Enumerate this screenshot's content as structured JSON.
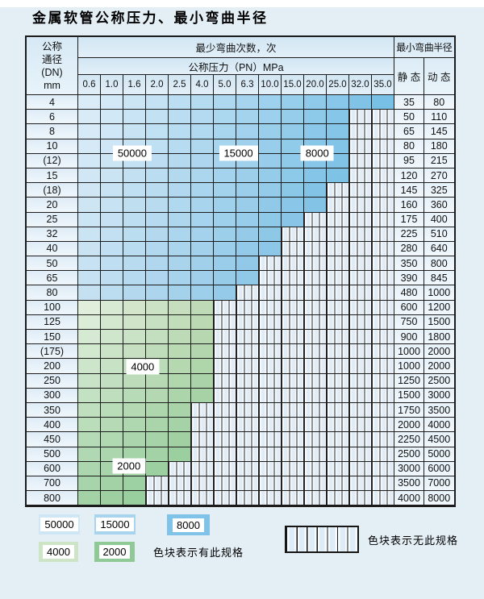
{
  "title": "金属软管公称压力、最小弯曲半径",
  "table": {
    "header": {
      "dn_lines": [
        "公称",
        "通径",
        "(DN)",
        "mm"
      ],
      "cycles_title": "最少弯曲次数，次",
      "pressure_title": "公称压力（PN）MPa",
      "radius_title": "最小弯曲半径",
      "static_label": "静 态",
      "dynamic_label": "动 态",
      "pressures": [
        "0.6",
        "1.0",
        "1.6",
        "2.0",
        "2.5",
        "4.0",
        "5.0",
        "6.3",
        "10.0",
        "15.0",
        "20.0",
        "25.0",
        "32.0",
        "35.0"
      ]
    },
    "rows": [
      {
        "dn": "4",
        "fill": "blue",
        "filled_through": "35.0",
        "static": "35",
        "dynamic": "80"
      },
      {
        "dn": "6",
        "fill": "blue",
        "filled_through": "25.0",
        "static": "50",
        "dynamic": "110"
      },
      {
        "dn": "8",
        "fill": "blue",
        "filled_through": "25.0",
        "static": "65",
        "dynamic": "145"
      },
      {
        "dn": "10",
        "fill": "blue",
        "filled_through": "25.0",
        "static": "80",
        "dynamic": "180"
      },
      {
        "dn": "(12)",
        "fill": "blue",
        "filled_through": "25.0",
        "static": "95",
        "dynamic": "215"
      },
      {
        "dn": "15",
        "fill": "blue",
        "filled_through": "25.0",
        "static": "120",
        "dynamic": "270"
      },
      {
        "dn": "(18)",
        "fill": "blue",
        "filled_through": "20.0",
        "static": "145",
        "dynamic": "325"
      },
      {
        "dn": "20",
        "fill": "blue",
        "filled_through": "20.0",
        "static": "160",
        "dynamic": "360"
      },
      {
        "dn": "25",
        "fill": "blue",
        "filled_through": "15.0",
        "static": "175",
        "dynamic": "400"
      },
      {
        "dn": "32",
        "fill": "blue",
        "filled_through": "10.0",
        "static": "225",
        "dynamic": "510"
      },
      {
        "dn": "40",
        "fill": "blue",
        "filled_through": "10.0",
        "static": "280",
        "dynamic": "640"
      },
      {
        "dn": "50",
        "fill": "blue",
        "filled_through": "6.3",
        "static": "350",
        "dynamic": "800"
      },
      {
        "dn": "65",
        "fill": "blue",
        "filled_through": "6.3",
        "static": "390",
        "dynamic": "845"
      },
      {
        "dn": "80",
        "fill": "blue",
        "filled_through": "5.0",
        "static": "480",
        "dynamic": "1000"
      },
      {
        "dn": "100",
        "fill": "green",
        "filled_through": "4.0",
        "static": "600",
        "dynamic": "1200"
      },
      {
        "dn": "125",
        "fill": "green",
        "filled_through": "4.0",
        "static": "750",
        "dynamic": "1500"
      },
      {
        "dn": "150",
        "fill": "green",
        "filled_through": "4.0",
        "static": "900",
        "dynamic": "1800"
      },
      {
        "dn": "(175)",
        "fill": "green",
        "filled_through": "4.0",
        "static": "1000",
        "dynamic": "2000"
      },
      {
        "dn": "200",
        "fill": "green",
        "filled_through": "4.0",
        "static": "1000",
        "dynamic": "2000"
      },
      {
        "dn": "250",
        "fill": "green",
        "filled_through": "4.0",
        "static": "1250",
        "dynamic": "2500"
      },
      {
        "dn": "300",
        "fill": "green",
        "filled_through": "4.0",
        "static": "1500",
        "dynamic": "3000"
      },
      {
        "dn": "350",
        "fill": "green",
        "filled_through": "2.5",
        "static": "1750",
        "dynamic": "3500"
      },
      {
        "dn": "400",
        "fill": "green",
        "filled_through": "2.5",
        "static": "2000",
        "dynamic": "4000"
      },
      {
        "dn": "450",
        "fill": "green",
        "filled_through": "2.5",
        "static": "2250",
        "dynamic": "4500"
      },
      {
        "dn": "500",
        "fill": "green",
        "filled_through": "2.5",
        "static": "2500",
        "dynamic": "5000"
      },
      {
        "dn": "600",
        "fill": "green",
        "filled_through": "2.0",
        "static": "3000",
        "dynamic": "6000"
      },
      {
        "dn": "700",
        "fill": "green",
        "filled_through": "1.6",
        "static": "3500",
        "dynamic": "7000"
      },
      {
        "dn": "800",
        "fill": "green",
        "filled_through": "1.6",
        "static": "4000",
        "dynamic": "8000"
      }
    ],
    "zone_labels": [
      {
        "text": "50000",
        "col": 2.39,
        "row": 3.96
      },
      {
        "text": "15000",
        "col": 7.09,
        "row": 3.96
      },
      {
        "text": "8000",
        "col": 10.58,
        "row": 3.96
      },
      {
        "text": "4000",
        "col": 2.85,
        "row": 18.5
      },
      {
        "text": "2000",
        "col": 2.24,
        "row": 25.25
      }
    ]
  },
  "legend": {
    "has_spec_swatches": [
      {
        "label": "50000",
        "color": "#cfe6f4"
      },
      {
        "label": "15000",
        "color": "#a9d4ed"
      },
      {
        "label": "8000",
        "color": "#7fc4e8"
      },
      {
        "label": "4000",
        "color": "#cde4c7"
      },
      {
        "label": "2000",
        "color": "#8fca96"
      }
    ],
    "has_spec_text": "色块表示有此规格",
    "no_spec_text": "色块表示无此规格"
  },
  "colors": {
    "page_bg": "#e4eef5",
    "grid_line": "#1c1c1c",
    "blue_top_left": "#daecf8",
    "blue_top_right": "#79c0e6",
    "blue_bottom_left": "#c4e0f1",
    "blue_bottom_right": "#5fb2de",
    "green_top_left": "#e0eedb",
    "green_top_right": "#bfdab6",
    "green_bottom_left": "#a2d2a6",
    "green_bottom_right": "#8cc993"
  }
}
